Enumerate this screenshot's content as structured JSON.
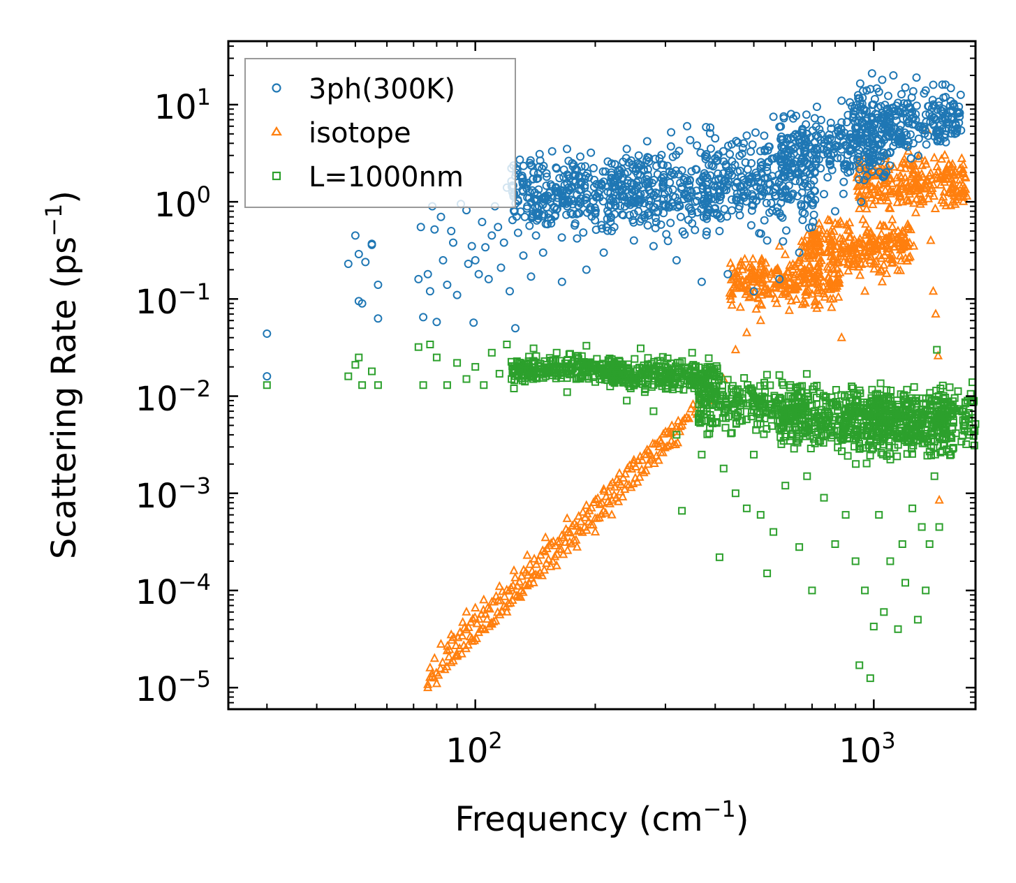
{
  "chart_data": {
    "type": "scatter",
    "xscale": "log",
    "yscale": "log",
    "xlim": [
      24,
      1800
    ],
    "ylim": [
      6e-06,
      45
    ],
    "xlabel": "Frequency (cm",
    "xlabel_exp": "−1",
    "xlabel_end": ")",
    "ylabel": "Scattering Rate (ps",
    "ylabel_exp": "−1",
    "ylabel_end": ")",
    "x_ticks": [
      {
        "value": 100,
        "base": "10",
        "exp": "2"
      },
      {
        "value": 1000,
        "base": "10",
        "exp": "3"
      }
    ],
    "y_ticks": [
      {
        "value": 10,
        "base": "10",
        "exp": "1"
      },
      {
        "value": 1,
        "base": "10",
        "exp": "0"
      },
      {
        "value": 0.1,
        "base": "10",
        "exp": "−1"
      },
      {
        "value": 0.01,
        "base": "10",
        "exp": "−2"
      },
      {
        "value": 0.001,
        "base": "10",
        "exp": "−3"
      },
      {
        "value": 0.0001,
        "base": "10",
        "exp": "−4"
      },
      {
        "value": 1e-05,
        "base": "10",
        "exp": "−5"
      }
    ],
    "legend_position": "upper-left",
    "series": [
      {
        "name": "3ph(300K)",
        "color": "#1f77b4",
        "marker": "circle",
        "points": [
          [
            30,
            0.044
          ],
          [
            30,
            0.016
          ],
          [
            48,
            0.23
          ],
          [
            50,
            0.45
          ],
          [
            51,
            0.29
          ],
          [
            51,
            0.095
          ],
          [
            52,
            0.09
          ],
          [
            53,
            0.24
          ],
          [
            55,
            0.37
          ],
          [
            55,
            0.36
          ],
          [
            57,
            0.063
          ],
          [
            57,
            0.14
          ],
          [
            72,
            0.16
          ],
          [
            73,
            0.55
          ],
          [
            74,
            0.065
          ],
          [
            76,
            0.18
          ],
          [
            77,
            0.12
          ],
          [
            78,
            0.9
          ],
          [
            79,
            0.52
          ],
          [
            80,
            0.058
          ],
          [
            82,
            0.7
          ],
          [
            83,
            0.25
          ],
          [
            85,
            0.14
          ],
          [
            87,
            0.5
          ],
          [
            88,
            0.38
          ],
          [
            90,
            0.11
          ],
          [
            92,
            0.95
          ],
          [
            95,
            0.82
          ],
          [
            96,
            0.23
          ],
          [
            98,
            0.35
          ],
          [
            99,
            0.057
          ],
          [
            100,
            0.25
          ],
          [
            102,
            0.18
          ],
          [
            104,
            0.62
          ],
          [
            106,
            0.34
          ],
          [
            108,
            0.16
          ],
          [
            110,
            0.45
          ],
          [
            112,
            0.9
          ],
          [
            114,
            0.55
          ],
          [
            116,
            0.21
          ],
          [
            118,
            0.38
          ],
          [
            120,
            1.4
          ],
          [
            122,
            0.12
          ],
          [
            124,
            0.65
          ],
          [
            126,
            0.05
          ],
          [
            128,
            0.48
          ],
          [
            130,
            1.8
          ],
          [
            132,
            0.28
          ],
          [
            135,
            0.9
          ],
          [
            138,
            0.17
          ],
          [
            140,
            2.0
          ],
          [
            142,
            0.45
          ],
          [
            145,
            3.1
          ],
          [
            148,
            0.3
          ],
          [
            150,
            1.1
          ],
          [
            155,
            0.6
          ],
          [
            160,
            2.2
          ],
          [
            165,
            0.15
          ],
          [
            170,
            0.9
          ],
          [
            175,
            2.5
          ],
          [
            180,
            0.42
          ],
          [
            185,
            1.6
          ],
          [
            190,
            0.2
          ],
          [
            195,
            3.2
          ],
          [
            200,
            0.75
          ],
          [
            205,
            1.3
          ],
          [
            210,
            0.3
          ],
          [
            215,
            2.6
          ],
          [
            220,
            0.5
          ],
          [
            230,
            1.9
          ],
          [
            240,
            3.5
          ],
          [
            250,
            0.4
          ],
          [
            260,
            1.2
          ],
          [
            270,
            4.2
          ],
          [
            280,
            0.35
          ],
          [
            290,
            2.8
          ],
          [
            300,
            0.9
          ],
          [
            310,
            5.2
          ],
          [
            320,
            0.25
          ],
          [
            330,
            2.1
          ],
          [
            340,
            6.0
          ],
          [
            350,
            0.6
          ],
          [
            360,
            3.8
          ],
          [
            370,
            0.15
          ],
          [
            380,
            1.5
          ],
          [
            400,
            4.5
          ],
          [
            410,
            0.5
          ],
          [
            420,
            2.6
          ],
          [
            430,
            0.18
          ],
          [
            440,
            3.9
          ],
          [
            460,
            0.9
          ],
          [
            480,
            4.8
          ],
          [
            500,
            0.12
          ],
          [
            520,
            2.2
          ],
          [
            540,
            0.4
          ],
          [
            560,
            7.5
          ],
          [
            580,
            0.16
          ],
          [
            600,
            3.1
          ],
          [
            620,
            8.0
          ],
          [
            650,
            0.3
          ],
          [
            680,
            5.0
          ],
          [
            700,
            0.55
          ],
          [
            720,
            9.5
          ],
          [
            750,
            1.2
          ],
          [
            780,
            6.5
          ],
          [
            800,
            0.8
          ],
          [
            830,
            11.0
          ],
          [
            860,
            2.0
          ],
          [
            900,
            8.5
          ],
          [
            930,
            1.0
          ],
          [
            960,
            14.0
          ],
          [
            990,
            21.0
          ],
          [
            1020,
            3.5
          ],
          [
            1050,
            18.0
          ],
          [
            1080,
            9.0
          ],
          [
            1120,
            20.0
          ],
          [
            1160,
            4.5
          ],
          [
            1200,
            15.0
          ],
          [
            1240,
            2.8
          ],
          [
            1280,
            19.0
          ],
          [
            1310,
            6.0
          ],
          [
            1350,
            14.0
          ],
          [
            1380,
            8.0
          ],
          [
            1410,
            16.0
          ],
          [
            1440,
            5.0
          ],
          [
            1470,
            4.2
          ]
        ],
        "cloud": [
          [
            170,
            1.2,
            0.55
          ],
          [
            300,
            1.3,
            0.6
          ],
          [
            520,
            1.6,
            0.65
          ],
          [
            800,
            3.5,
            0.5
          ],
          [
            1200,
            7.0,
            0.45
          ]
        ]
      },
      {
        "name": "isotope",
        "color": "#ff7f0e",
        "marker": "triangle",
        "points": [
          [
            76,
            1e-05
          ],
          [
            77,
            1.6e-05
          ],
          [
            78,
            1.3e-05
          ],
          [
            79,
            2e-05
          ],
          [
            80,
            1.1e-05
          ],
          [
            82,
            2.8e-05
          ],
          [
            85,
            2.4e-05
          ],
          [
            87,
            3.5e-05
          ],
          [
            90,
            2.1e-05
          ],
          [
            93,
            4.7e-05
          ],
          [
            95,
            6e-05
          ],
          [
            98,
            3.2e-05
          ],
          [
            100,
            6.6e-05
          ],
          [
            105,
            8e-05
          ],
          [
            110,
            4.5e-05
          ],
          [
            115,
            0.00011
          ],
          [
            120,
            6e-05
          ],
          [
            125,
            0.00016
          ],
          [
            130,
            8.5e-05
          ],
          [
            135,
            0.00023
          ],
          [
            140,
            0.00012
          ],
          [
            150,
            0.00035
          ],
          [
            160,
            0.00018
          ],
          [
            170,
            0.00055
          ],
          [
            180,
            0.00028
          ],
          [
            190,
            0.00075
          ],
          [
            200,
            0.0004
          ],
          [
            210,
            0.0011
          ],
          [
            220,
            0.0006
          ],
          [
            230,
            0.0016
          ],
          [
            250,
            0.0022
          ],
          [
            270,
            0.0028
          ],
          [
            290,
            0.0035
          ],
          [
            310,
            0.0042
          ],
          [
            330,
            0.005
          ],
          [
            360,
            0.0065
          ],
          [
            390,
            0.009
          ],
          [
            420,
            0.015
          ],
          [
            450,
            0.03
          ],
          [
            480,
            0.045
          ],
          [
            520,
            0.06
          ],
          [
            560,
            0.16
          ],
          [
            580,
            0.35
          ],
          [
            600,
            0.12
          ],
          [
            650,
            0.25
          ],
          [
            700,
            0.45
          ],
          [
            720,
            0.08
          ],
          [
            760,
            0.3
          ],
          [
            800,
            0.6
          ],
          [
            830,
            0.04
          ],
          [
            880,
            0.35
          ],
          [
            920,
            0.85
          ],
          [
            950,
            0.12
          ],
          [
            1000,
            0.4
          ],
          [
            1050,
            0.15
          ],
          [
            1100,
            0.85
          ],
          [
            1150,
            0.5
          ],
          [
            1200,
            2.2
          ],
          [
            1230,
            1.2
          ],
          [
            1260,
            0.35
          ],
          [
            1300,
            3.0
          ],
          [
            1330,
            1.0
          ],
          [
            1360,
            5.5
          ],
          [
            1390,
            0.4
          ],
          [
            1410,
            0.12
          ],
          [
            1430,
            0.07
          ],
          [
            1450,
            0.026
          ],
          [
            1460,
            0.00085
          ]
        ],
        "cloud": [
          [
            600,
            0.15,
            0.35
          ],
          [
            900,
            0.35,
            0.35
          ],
          [
            1250,
            1.5,
            0.4
          ]
        ]
      },
      {
        "name": "L=1000nm",
        "color": "#2ca02c",
        "marker": "square",
        "points": [
          [
            30,
            0.013
          ],
          [
            48,
            0.016
          ],
          [
            50,
            0.021
          ],
          [
            51,
            0.025
          ],
          [
            52,
            0.013
          ],
          [
            55,
            0.018
          ],
          [
            57,
            0.013
          ],
          [
            72,
            0.032
          ],
          [
            74,
            0.013
          ],
          [
            77,
            0.034
          ],
          [
            80,
            0.025
          ],
          [
            85,
            0.013
          ],
          [
            90,
            0.022
          ],
          [
            95,
            0.015
          ],
          [
            100,
            0.02
          ],
          [
            105,
            0.013
          ],
          [
            110,
            0.028
          ],
          [
            115,
            0.017
          ],
          [
            120,
            0.034
          ],
          [
            125,
            0.012
          ],
          [
            130,
            0.022
          ],
          [
            140,
            0.031
          ],
          [
            150,
            0.016
          ],
          [
            160,
            0.028
          ],
          [
            170,
            0.011
          ],
          [
            180,
            0.025
          ],
          [
            190,
            0.033
          ],
          [
            200,
            0.014
          ],
          [
            220,
            0.024
          ],
          [
            240,
            0.009
          ],
          [
            260,
            0.031
          ],
          [
            280,
            0.007
          ],
          [
            300,
            0.02
          ],
          [
            320,
            0.004
          ],
          [
            330,
            0.00066
          ],
          [
            350,
            0.028
          ],
          [
            370,
            0.0025
          ],
          [
            400,
            0.0095
          ],
          [
            410,
            0.00022
          ],
          [
            420,
            0.0018
          ],
          [
            450,
            0.001
          ],
          [
            480,
            0.0007
          ],
          [
            500,
            0.0025
          ],
          [
            520,
            0.0006
          ],
          [
            540,
            0.00015
          ],
          [
            560,
            0.0004
          ],
          [
            600,
            0.0012
          ],
          [
            650,
            0.00028
          ],
          [
            680,
            0.0015
          ],
          [
            700,
            0.0001
          ],
          [
            750,
            0.0009
          ],
          [
            800,
            0.0003
          ],
          [
            850,
            0.0006
          ],
          [
            900,
            0.0002
          ],
          [
            920,
            1.7e-05
          ],
          [
            950,
            0.0001
          ],
          [
            980,
            1.25e-05
          ],
          [
            1000,
            4.25e-05
          ],
          [
            1030,
            0.0006
          ],
          [
            1060,
            6e-05
          ],
          [
            1100,
            0.0002
          ],
          [
            1150,
            4e-05
          ],
          [
            1180,
            0.0003
          ],
          [
            1200,
            0.00012
          ],
          [
            1250,
            0.0007
          ],
          [
            1290,
            5e-05
          ],
          [
            1320,
            0.00045
          ],
          [
            1350,
            0.0001
          ],
          [
            1380,
            0.0003
          ],
          [
            1400,
            0.004
          ],
          [
            1420,
            0.0015
          ],
          [
            1440,
            0.03
          ],
          [
            1460,
            0.00045
          ],
          [
            1470,
            0.012
          ]
        ],
        "cloud": [
          [
            170,
            0.019,
            0.18
          ],
          [
            300,
            0.016,
            0.25
          ],
          [
            500,
            0.008,
            0.4
          ],
          [
            800,
            0.006,
            0.45
          ],
          [
            1150,
            0.005,
            0.5
          ],
          [
            1400,
            0.006,
            0.45
          ]
        ]
      }
    ]
  }
}
